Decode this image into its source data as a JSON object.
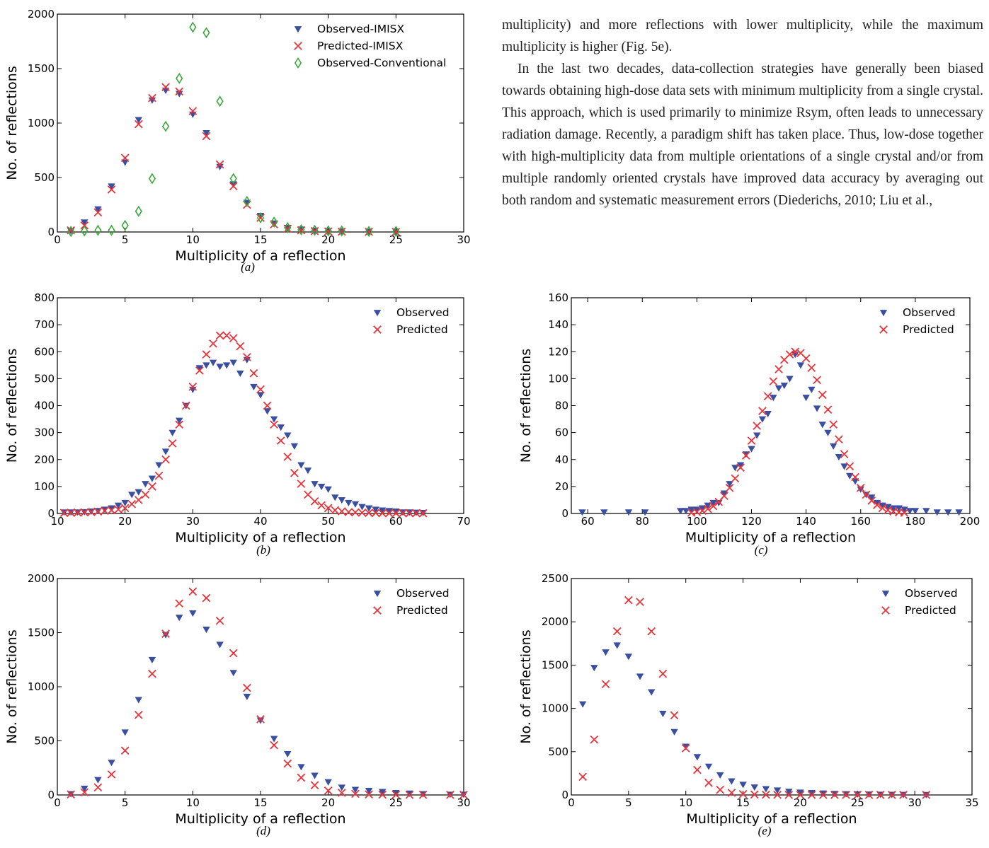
{
  "body_text": {
    "para1": "multiplicity) and more reflections with lower multiplicity, while the maximum multiplicity is higher (Fig. 5e).",
    "para2": "In the last two decades, data-collection strategies have generally been biased towards obtaining high-dose data sets with minimum multiplicity from a single crystal. This approach, which is used primarily to minimize Rsym, often leads to unnecessary radiation damage. Recently, a paradigm shift has taken place. Thus, low-dose together with high-multiplicity data from multiple orientations of a single crystal and/or from multiple randomly oriented crystals have improved data accuracy by averaging out both random and systematic measurement errors (Diederichs, 2010; Liu et al.,"
  },
  "colors": {
    "observed": "#3a4fa0",
    "predicted": "#e8343a",
    "conventional": "#3aa83a",
    "axis": "#000000"
  },
  "chart_data": [
    {
      "id": "a",
      "type": "scatter",
      "caption": "(a)",
      "xlabel": "Multiplicity of a reflection",
      "ylabel": "No. of reflections",
      "xlim": [
        0,
        30
      ],
      "ylim": [
        0,
        2000
      ],
      "xticks": [
        0,
        5,
        10,
        15,
        20,
        25,
        30
      ],
      "yticks": [
        0,
        500,
        1000,
        1500,
        2000
      ],
      "legend": "top-right",
      "series": [
        {
          "name": "Observed-IMISX",
          "marker": "triangle",
          "color": "#3a4fa0",
          "x": [
            1,
            2,
            3,
            4,
            5,
            6,
            7,
            8,
            9,
            10,
            11,
            12,
            13,
            14,
            15,
            16,
            17,
            18,
            19,
            20,
            21,
            23,
            25
          ],
          "y": [
            10,
            90,
            210,
            420,
            640,
            1030,
            1210,
            1300,
            1270,
            1080,
            910,
            600,
            440,
            270,
            150,
            80,
            40,
            25,
            15,
            10,
            8,
            5,
            3
          ]
        },
        {
          "name": "Predicted-IMISX",
          "marker": "x",
          "color": "#e8343a",
          "x": [
            1,
            2,
            3,
            4,
            5,
            6,
            7,
            8,
            9,
            10,
            11,
            12,
            13,
            14,
            15,
            16,
            17,
            18,
            19,
            20,
            21,
            23,
            25
          ],
          "y": [
            15,
            60,
            180,
            390,
            680,
            990,
            1230,
            1330,
            1290,
            1110,
            880,
            620,
            420,
            250,
            130,
            70,
            30,
            15,
            8,
            5,
            3,
            2,
            1
          ]
        },
        {
          "name": "Observed-Conventional",
          "marker": "diamond",
          "color": "#3aa83a",
          "x": [
            1,
            2,
            3,
            4,
            5,
            6,
            7,
            8,
            9,
            10,
            11,
            12,
            13,
            14,
            15,
            16,
            17,
            18,
            19,
            20,
            21,
            23,
            25
          ],
          "y": [
            5,
            10,
            15,
            15,
            60,
            190,
            490,
            970,
            1410,
            1880,
            1830,
            1200,
            490,
            280,
            130,
            90,
            40,
            20,
            15,
            10,
            10,
            5,
            5
          ]
        }
      ]
    },
    {
      "id": "b",
      "type": "scatter",
      "caption": "(b)",
      "xlabel": "Multiplicity of a reflection",
      "ylabel": "No. of reflections",
      "xlim": [
        10,
        70
      ],
      "ylim": [
        0,
        800
      ],
      "xticks": [
        10,
        20,
        30,
        40,
        50,
        60,
        70
      ],
      "yticks": [
        0,
        100,
        200,
        300,
        400,
        500,
        600,
        700,
        800
      ],
      "legend": "top-right",
      "series": [
        {
          "name": "Observed",
          "marker": "triangle",
          "color": "#3a4fa0",
          "x": [
            11,
            12,
            13,
            14,
            15,
            16,
            17,
            18,
            19,
            20,
            21,
            22,
            23,
            24,
            25,
            26,
            27,
            28,
            29,
            30,
            31,
            32,
            33,
            34,
            35,
            36,
            37,
            38,
            39,
            40,
            41,
            42,
            43,
            44,
            45,
            46,
            47,
            48,
            49,
            50,
            51,
            52,
            53,
            54,
            55,
            56,
            57,
            58,
            59,
            60,
            61,
            62,
            63,
            64
          ],
          "y": [
            5,
            5,
            5,
            6,
            8,
            10,
            15,
            20,
            30,
            40,
            70,
            80,
            110,
            130,
            180,
            230,
            300,
            345,
            400,
            460,
            540,
            550,
            560,
            545,
            550,
            560,
            520,
            570,
            470,
            440,
            380,
            350,
            320,
            290,
            250,
            180,
            160,
            110,
            100,
            90,
            60,
            50,
            40,
            35,
            25,
            20,
            15,
            12,
            10,
            8,
            5,
            5,
            4,
            3
          ]
        },
        {
          "name": "Predicted",
          "marker": "x",
          "color": "#e8343a",
          "x": [
            11,
            12,
            13,
            14,
            15,
            16,
            17,
            18,
            19,
            20,
            21,
            22,
            23,
            24,
            25,
            26,
            27,
            28,
            29,
            30,
            31,
            32,
            33,
            34,
            35,
            36,
            37,
            38,
            39,
            40,
            41,
            42,
            43,
            44,
            45,
            46,
            47,
            48,
            49,
            50,
            51,
            52,
            53,
            54,
            55,
            56,
            57,
            58,
            59,
            60,
            61,
            62,
            63,
            64
          ],
          "y": [
            2,
            3,
            3,
            4,
            5,
            7,
            10,
            12,
            15,
            20,
            35,
            50,
            70,
            100,
            140,
            200,
            260,
            330,
            400,
            470,
            530,
            590,
            630,
            660,
            660,
            650,
            620,
            580,
            520,
            460,
            400,
            330,
            270,
            210,
            150,
            110,
            70,
            45,
            30,
            20,
            12,
            8,
            5,
            4,
            3,
            2,
            2,
            1,
            1,
            1,
            1,
            1,
            1,
            1
          ]
        }
      ]
    },
    {
      "id": "c",
      "type": "scatter",
      "caption": "(c)",
      "xlabel": "Multiplicity of a reflection",
      "ylabel": "No. of reflections",
      "xlim": [
        54,
        200
      ],
      "ylim": [
        0,
        160
      ],
      "xticks": [
        60,
        80,
        100,
        120,
        140,
        160,
        180,
        200
      ],
      "yticks": [
        0,
        20,
        40,
        60,
        80,
        100,
        120,
        140,
        160
      ],
      "legend": "top-right",
      "series": [
        {
          "name": "Observed",
          "marker": "triangle",
          "color": "#3a4fa0",
          "x": [
            58,
            66,
            75,
            81,
            94,
            96,
            98,
            100,
            102,
            104,
            106,
            108,
            110,
            112,
            114,
            116,
            118,
            120,
            122,
            124,
            126,
            128,
            130,
            132,
            134,
            136,
            138,
            140,
            142,
            144,
            146,
            148,
            150,
            152,
            154,
            156,
            158,
            160,
            162,
            164,
            166,
            168,
            170,
            172,
            174,
            176,
            178,
            180,
            184,
            188,
            192,
            196
          ],
          "y": [
            1,
            1,
            1,
            1,
            2,
            2,
            3,
            3,
            4,
            6,
            8,
            8,
            15,
            22,
            34,
            36,
            44,
            48,
            58,
            70,
            74,
            86,
            93,
            95,
            100,
            118,
            110,
            86,
            92,
            78,
            66,
            60,
            50,
            42,
            35,
            28,
            24,
            18,
            14,
            12,
            8,
            6,
            5,
            4,
            4,
            3,
            2,
            2,
            2,
            1,
            1,
            1
          ]
        },
        {
          "name": "Predicted",
          "marker": "x",
          "color": "#e8343a",
          "x": [
            98,
            100,
            102,
            104,
            106,
            108,
            110,
            112,
            114,
            116,
            118,
            120,
            122,
            124,
            126,
            128,
            130,
            132,
            134,
            136,
            138,
            140,
            142,
            144,
            146,
            148,
            150,
            152,
            154,
            156,
            158,
            160,
            162,
            164,
            166,
            168,
            170,
            172,
            174,
            176
          ],
          "y": [
            0.6,
            1.1,
            2,
            3.4,
            5.5,
            8.6,
            13,
            19,
            26,
            34,
            43,
            54,
            65,
            76,
            87,
            98,
            107,
            114,
            118,
            120,
            119,
            115,
            108,
            99,
            88,
            77,
            66,
            55,
            44,
            35,
            27,
            19,
            14,
            9.5,
            6.3,
            4,
            2.5,
            1.5,
            0.9,
            0.5
          ]
        }
      ]
    },
    {
      "id": "d",
      "type": "scatter",
      "caption": "(d)",
      "xlabel": "Multiplicity of a reflection",
      "ylabel": "No. of reflections",
      "xlim": [
        0,
        30
      ],
      "ylim": [
        0,
        2000
      ],
      "xticks": [
        0,
        5,
        10,
        15,
        20,
        25,
        30
      ],
      "yticks": [
        0,
        500,
        1000,
        1500,
        2000
      ],
      "legend": "top-right",
      "series": [
        {
          "name": "Observed",
          "marker": "triangle",
          "color": "#3a4fa0",
          "x": [
            1,
            2,
            3,
            4,
            5,
            6,
            7,
            8,
            9,
            10,
            11,
            12,
            13,
            14,
            15,
            16,
            17,
            18,
            19,
            20,
            21,
            22,
            23,
            24,
            25,
            26,
            27,
            29,
            30
          ],
          "y": [
            10,
            60,
            140,
            300,
            580,
            880,
            1250,
            1480,
            1640,
            1680,
            1530,
            1390,
            1130,
            910,
            690,
            520,
            380,
            260,
            180,
            120,
            70,
            50,
            40,
            30,
            20,
            15,
            10,
            5,
            5
          ]
        },
        {
          "name": "Predicted",
          "marker": "x",
          "color": "#e8343a",
          "x": [
            1,
            2,
            3,
            4,
            5,
            6,
            7,
            8,
            9,
            10,
            11,
            12,
            13,
            14,
            15,
            16,
            17,
            18,
            19,
            20,
            21,
            22,
            23,
            24,
            25,
            26,
            27,
            29,
            30
          ],
          "y": [
            5,
            25,
            70,
            190,
            410,
            740,
            1120,
            1490,
            1770,
            1880,
            1820,
            1610,
            1310,
            990,
            700,
            460,
            290,
            160,
            90,
            40,
            20,
            10,
            5,
            3,
            2,
            1,
            1,
            1,
            1
          ]
        }
      ]
    },
    {
      "id": "e",
      "type": "scatter",
      "caption": "(e)",
      "xlabel": "Multiplicity of a reflection",
      "ylabel": "No. of reflections",
      "xlim": [
        0,
        35
      ],
      "ylim": [
        0,
        2500
      ],
      "xticks": [
        0,
        5,
        10,
        15,
        20,
        25,
        30,
        35
      ],
      "yticks": [
        0,
        500,
        1000,
        1500,
        2000,
        2500
      ],
      "legend": "top-right",
      "series": [
        {
          "name": "Observed",
          "marker": "triangle",
          "color": "#3a4fa0",
          "x": [
            1,
            2,
            3,
            4,
            5,
            6,
            7,
            8,
            9,
            10,
            11,
            12,
            13,
            14,
            15,
            16,
            17,
            18,
            19,
            20,
            21,
            22,
            23,
            24,
            25,
            26,
            27,
            28,
            29,
            31
          ],
          "y": [
            1050,
            1470,
            1650,
            1730,
            1600,
            1370,
            1190,
            940,
            730,
            560,
            440,
            330,
            230,
            160,
            120,
            90,
            70,
            55,
            40,
            30,
            25,
            20,
            15,
            12,
            10,
            8,
            6,
            5,
            4,
            3
          ]
        },
        {
          "name": "Predicted",
          "marker": "x",
          "color": "#e8343a",
          "x": [
            1,
            2,
            3,
            4,
            5,
            6,
            7,
            8,
            9,
            10,
            11,
            12,
            13,
            14,
            15,
            16,
            17,
            18,
            19,
            20,
            21,
            22,
            23,
            24,
            25,
            26,
            27,
            28,
            29,
            31
          ],
          "y": [
            210,
            640,
            1280,
            1890,
            2250,
            2230,
            1890,
            1400,
            920,
            540,
            290,
            140,
            60,
            25,
            10,
            5,
            3,
            2,
            1,
            1,
            1,
            1,
            1,
            1,
            1,
            1,
            1,
            1,
            1,
            1
          ]
        }
      ]
    }
  ]
}
